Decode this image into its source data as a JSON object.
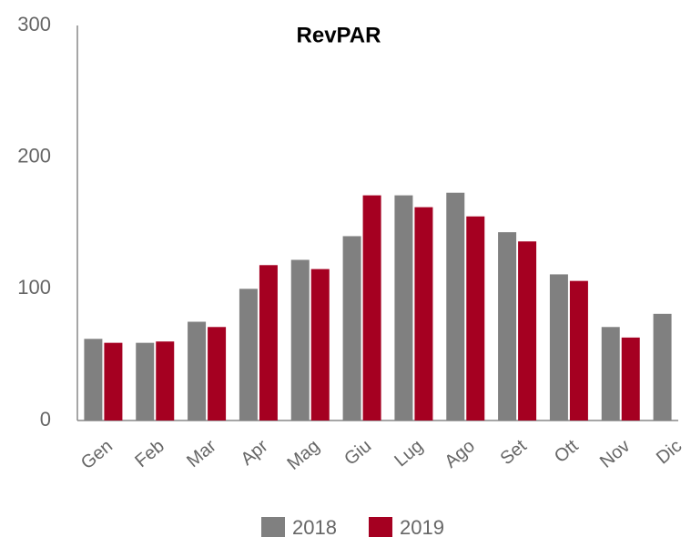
{
  "chart_data": {
    "type": "bar",
    "title": "RevPAR",
    "categories": [
      "Gen",
      "Feb",
      "Mar",
      "Apr",
      "Mag",
      "Giu",
      "Lug",
      "Ago",
      "Set",
      "Ott",
      "Nov",
      "Dic"
    ],
    "series": [
      {
        "name": "2018",
        "color": "#808080",
        "values": [
          62,
          59,
          75,
          100,
          122,
          140,
          171,
          173,
          143,
          111,
          71,
          81
        ]
      },
      {
        "name": "2019",
        "color": "#a50021",
        "values": [
          59,
          60,
          71,
          118,
          115,
          171,
          162,
          155,
          136,
          106,
          63,
          null
        ]
      }
    ],
    "ylim": [
      0,
      300
    ],
    "yticks": [
      0,
      100,
      200,
      300
    ],
    "grid": false,
    "legend": "bottom"
  }
}
